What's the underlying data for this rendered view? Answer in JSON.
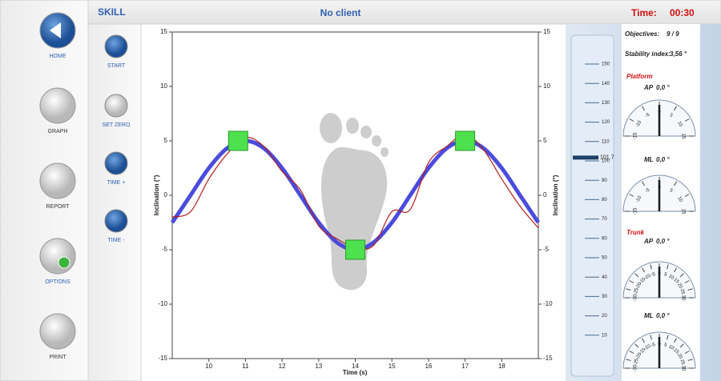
{
  "header": {
    "mode": "SKILL",
    "client": "No client",
    "time_label": "Time:",
    "time": "00:30"
  },
  "nav": [
    "HOME",
    "GRAPH",
    "REPORT",
    "OPTIONS",
    "PRINT"
  ],
  "controls": [
    "START",
    "SET ZERO",
    "TIME +",
    "TIME -"
  ],
  "chart_data": {
    "type": "line",
    "xlabel": "Time (s)",
    "ylabel": "Inclination (°)",
    "y2label": "Inclination (°)",
    "x": [
      9,
      9.5,
      10,
      10.5,
      11,
      11.5,
      12,
      12.5,
      13,
      13.5,
      14,
      14.5,
      15,
      15.5,
      16,
      16.5,
      17,
      17.5,
      18,
      18.5,
      19
    ],
    "series": [
      {
        "color": "#4b4bdc",
        "values": [
          -2.5,
          0,
          2.5,
          4.33,
          5,
          4.33,
          2.5,
          0,
          -2.5,
          -4.33,
          -5,
          -4.33,
          -2.5,
          0,
          2.5,
          4.33,
          5,
          4.33,
          2.5,
          0,
          -2.5
        ]
      },
      {
        "color": "#b02020",
        "values": [
          -2,
          -1.5,
          1.5,
          3.8,
          5.3,
          4.5,
          2.2,
          0.5,
          -2.8,
          -4,
          -4.8,
          -4.6,
          -1.5,
          -1.3,
          3,
          4.5,
          5.6,
          4.2,
          1.5,
          -1,
          -3
        ]
      }
    ],
    "targets": {
      "color": "#4ee04e",
      "x": [
        10.8,
        14,
        17
      ],
      "values": [
        5,
        -5,
        5
      ]
    },
    "xlim": [
      9,
      19
    ],
    "xticks": [
      10,
      11,
      12,
      13,
      14,
      15,
      16,
      17,
      18
    ],
    "ylim": [
      -15,
      15
    ],
    "yticks": [
      -15,
      -10,
      -5,
      0,
      5,
      10,
      15
    ],
    "y2lim": [
      -15,
      15
    ],
    "y2ticks": [
      -15,
      -10,
      -5,
      0,
      5,
      10,
      15
    ]
  },
  "slider": {
    "ylim": [
      0,
      150
    ],
    "yticks": [
      10,
      20,
      30,
      40,
      50,
      60,
      70,
      80,
      90,
      100,
      110,
      120,
      130,
      140,
      150
    ],
    "value": 101.7
  },
  "panel": {
    "objectives_label": "Objectives:",
    "objectives": "9 / 9",
    "stability_label": "Stability index:",
    "stability": "3,56 °",
    "groups": [
      {
        "title": "Platform",
        "gauges": [
          {
            "name": "AP",
            "value": 0,
            "value_label": "0,0 °",
            "lim": [
              -15,
              15
            ],
            "ticks": [
              -15,
              -10,
              -5,
              0,
              5,
              10,
              15
            ]
          },
          {
            "name": "ML",
            "value": 0,
            "value_label": "0,0 °",
            "lim": [
              -15,
              15
            ],
            "ticks": [
              -15,
              -10,
              -5,
              0,
              5,
              10,
              15
            ]
          }
        ]
      },
      {
        "title": "Trunk",
        "gauges": [
          {
            "name": "AP",
            "value": 0,
            "value_label": "0,0 °",
            "lim": [
              -30,
              30
            ],
            "ticks": [
              -30,
              -25,
              -20,
              -15,
              -10,
              -5,
              0,
              5,
              10,
              15,
              20,
              25,
              30
            ]
          },
          {
            "name": "ML",
            "value": 0,
            "value_label": "0,0 °",
            "lim": [
              -30,
              30
            ],
            "ticks": [
              -30,
              -25,
              -20,
              -15,
              -10,
              -5,
              0,
              5,
              10,
              15,
              20,
              25,
              30
            ]
          }
        ]
      }
    ]
  }
}
